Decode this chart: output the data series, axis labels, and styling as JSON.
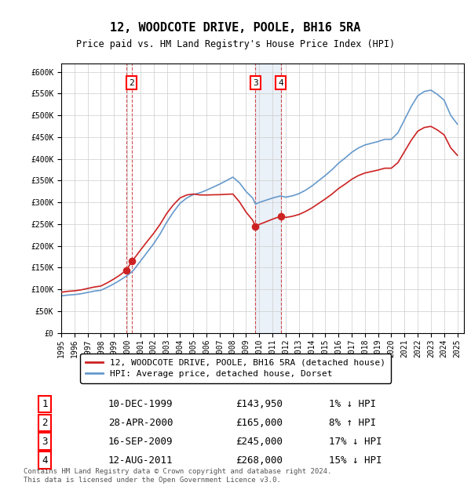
{
  "title": "12, WOODCOTE DRIVE, POOLE, BH16 5RA",
  "subtitle": "Price paid vs. HM Land Registry's House Price Index (HPI)",
  "ylim": [
    0,
    620000
  ],
  "hpi_color": "#6699cc",
  "price_color": "#cc2222",
  "legend_label_price": "12, WOODCOTE DRIVE, POOLE, BH16 5RA (detached house)",
  "legend_label_hpi": "HPI: Average price, detached house, Dorset",
  "transactions": [
    {
      "num": 1,
      "date": "10-DEC-1999",
      "price": 143950,
      "pct": "1%",
      "dir": "↓",
      "year": 1999.95
    },
    {
      "num": 2,
      "date": "28-APR-2000",
      "price": 165000,
      "pct": "8%",
      "dir": "↑",
      "year": 2000.33
    },
    {
      "num": 3,
      "date": "16-SEP-2009",
      "price": 245000,
      "pct": "17%",
      "dir": "↓",
      "year": 2009.71
    },
    {
      "num": 4,
      "date": "12-AUG-2011",
      "price": 268000,
      "pct": "15%",
      "dir": "↓",
      "year": 2011.62
    }
  ],
  "footer": "Contains HM Land Registry data © Crown copyright and database right 2024.\nThis data is licensed under the Open Government Licence v3.0.",
  "background_color": "#ffffff",
  "grid_color": "#cccccc",
  "hpi_data_x": [
    1995.0,
    1995.5,
    1996.0,
    1996.5,
    1997.0,
    1997.5,
    1998.0,
    1998.5,
    1999.0,
    1999.5,
    2000.0,
    2000.33,
    2000.5,
    2001.0,
    2001.5,
    2002.0,
    2002.5,
    2003.0,
    2003.5,
    2004.0,
    2004.5,
    2005.0,
    2005.5,
    2006.0,
    2006.5,
    2007.0,
    2007.5,
    2008.0,
    2008.5,
    2009.0,
    2009.5,
    2009.71,
    2010.0,
    2010.5,
    2011.0,
    2011.5,
    2011.62,
    2012.0,
    2012.5,
    2013.0,
    2013.5,
    2014.0,
    2014.5,
    2015.0,
    2015.5,
    2016.0,
    2016.5,
    2017.0,
    2017.5,
    2018.0,
    2018.5,
    2019.0,
    2019.5,
    2020.0,
    2020.5,
    2021.0,
    2021.5,
    2022.0,
    2022.5,
    2023.0,
    2023.5,
    2024.0,
    2024.5,
    2025.0
  ],
  "hpi_data_y": [
    85000,
    87000,
    88000,
    90000,
    93000,
    96000,
    98000,
    105000,
    113000,
    122000,
    132000,
    140000,
    145000,
    165000,
    185000,
    205000,
    228000,
    255000,
    278000,
    298000,
    310000,
    318000,
    322000,
    328000,
    335000,
    342000,
    350000,
    358000,
    345000,
    325000,
    310000,
    296000,
    300000,
    305000,
    310000,
    314000,
    315000,
    312000,
    315000,
    320000,
    328000,
    338000,
    350000,
    362000,
    375000,
    390000,
    402000,
    415000,
    425000,
    432000,
    436000,
    440000,
    445000,
    445000,
    460000,
    490000,
    520000,
    545000,
    555000,
    558000,
    548000,
    535000,
    500000,
    480000
  ]
}
